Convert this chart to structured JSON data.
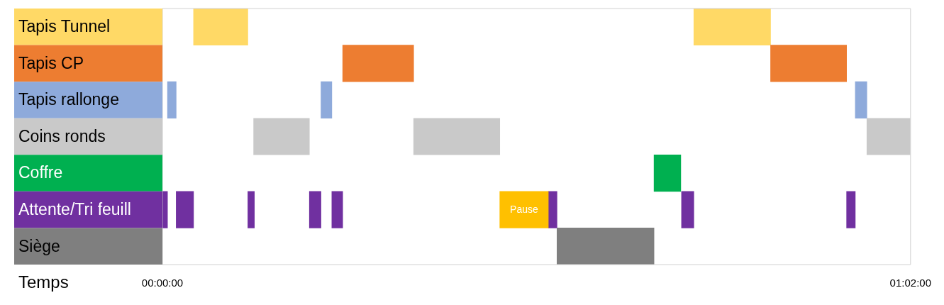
{
  "chart_data": {
    "type": "bar",
    "orientation": "horizontal",
    "xlabel": "Temps",
    "categories": [
      "Tapis Tunnel",
      "Tapis CP",
      "Tapis rallonge",
      "Coins ronds",
      "Coffre",
      "Attente/Tri feuill",
      "Siège"
    ],
    "xlim": [
      0,
      1.0333
    ],
    "xticks": [
      {
        "value": 0,
        "label": "00:00:00"
      },
      {
        "value": 1.0333,
        "label": "01:02:00"
      }
    ],
    "grid": false,
    "legend": false,
    "series": [
      {
        "base": [
          0.043,
          0.249,
          0.007,
          0.126,
          0.679,
          0,
          0.545
        ],
        "values": [
          0.075,
          0.098,
          0.012,
          0.077,
          0.037,
          0.007,
          0.134
        ],
        "colors": [
          "#ffd966",
          "#ed7d31",
          "#8eaadb",
          "#c9c9c9",
          "#00b050",
          "#7030a0",
          "#7f7f7f"
        ]
      },
      {
        "base": [
          0.734,
          0.84,
          0.219,
          0.347,
          null,
          0.019,
          null
        ],
        "values": [
          0.106,
          0.105,
          0.015,
          0.119,
          null,
          0.024,
          null
        ],
        "colors": [
          "#ffd966",
          "#ed7d31",
          "#8eaadb",
          "#c9c9c9",
          "#00b050",
          "#7030a0",
          "#7f7f7f"
        ]
      },
      {
        "base": [
          null,
          null,
          0.957,
          0.973,
          null,
          0.118,
          null
        ],
        "values": [
          null,
          null,
          0.016,
          0.06,
          null,
          0.009,
          null
        ],
        "colors": [
          "#ffd966",
          "#ed7d31",
          "#8eaadb",
          "#c9c9c9",
          "#00b050",
          "#7030a0",
          "#7f7f7f"
        ]
      },
      {
        "base": [
          null,
          null,
          null,
          null,
          null,
          0.203,
          null
        ],
        "values": [
          null,
          null,
          null,
          null,
          null,
          0.016,
          null
        ],
        "colors": [
          "#ffd966",
          "#ed7d31",
          "#8eaadb",
          "#c9c9c9",
          "#00b050",
          "#7030a0",
          "#7f7f7f"
        ]
      },
      {
        "base": [
          null,
          null,
          null,
          null,
          null,
          0.234,
          null
        ],
        "values": [
          null,
          null,
          null,
          null,
          null,
          0.015,
          null
        ],
        "colors": [
          "#ffd966",
          "#ed7d31",
          "#8eaadb",
          "#c9c9c9",
          "#00b050",
          "#7030a0",
          "#7f7f7f"
        ]
      },
      {
        "base": [
          null,
          null,
          null,
          null,
          null,
          0.466,
          null
        ],
        "values": [
          null,
          null,
          null,
          null,
          null,
          0.067,
          null
        ],
        "colors": [
          "#ffd966",
          "#ed7d31",
          "#8eaadb",
          "#c9c9c9",
          "#00b050",
          "#ffc000",
          "#7f7f7f"
        ],
        "value_labels": [
          null,
          null,
          null,
          null,
          null,
          "Pause",
          null
        ]
      },
      {
        "base": [
          null,
          null,
          null,
          null,
          null,
          0.533,
          null
        ],
        "values": [
          null,
          null,
          null,
          null,
          null,
          0.012,
          null
        ],
        "colors": [
          "#ffd966",
          "#ed7d31",
          "#8eaadb",
          "#c9c9c9",
          "#00b050",
          "#7030a0",
          "#7f7f7f"
        ]
      },
      {
        "base": [
          null,
          null,
          null,
          null,
          null,
          0.717,
          null
        ],
        "values": [
          null,
          null,
          null,
          null,
          null,
          0.017,
          null
        ],
        "colors": [
          "#ffd966",
          "#ed7d31",
          "#8eaadb",
          "#c9c9c9",
          "#00b050",
          "#7030a0",
          "#7f7f7f"
        ]
      },
      {
        "base": [
          null,
          null,
          null,
          null,
          null,
          0.945,
          null
        ],
        "values": [
          null,
          null,
          null,
          null,
          null,
          0.012,
          null
        ],
        "colors": [
          "#ffd966",
          "#ed7d31",
          "#8eaadb",
          "#c9c9c9",
          "#00b050",
          "#7030a0",
          "#7f7f7f"
        ]
      }
    ]
  }
}
